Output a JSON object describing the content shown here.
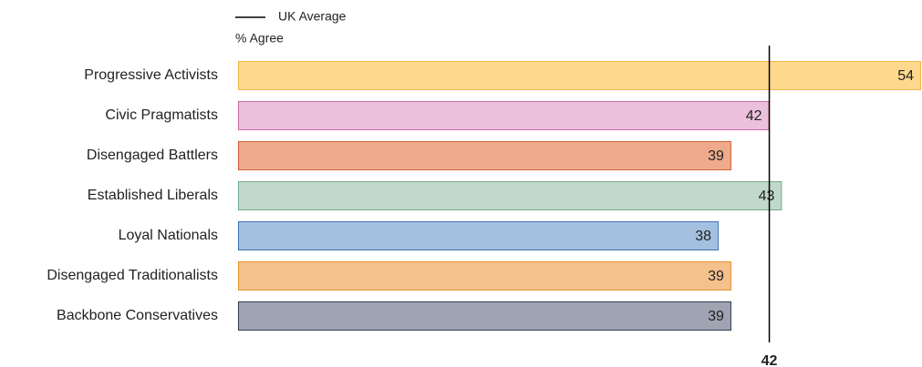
{
  "chart_data": {
    "type": "bar",
    "orientation": "horizontal",
    "value_label": "% Agree",
    "categories": [
      "Progressive Activists",
      "Civic Pragmatists",
      "Disengaged Battlers",
      "Established Liberals",
      "Loyal Nationals",
      "Disengaged Traditionalists",
      "Backbone Conservatives"
    ],
    "values": [
      54,
      42,
      39,
      43,
      38,
      39,
      39
    ],
    "colors": [
      "#fcd98c",
      "#ebc0dc",
      "#eeaa8a",
      "#c0d9cc",
      "#a4c0e0",
      "#f4c08c",
      "#a0a4b2"
    ],
    "border_colors": [
      "#eeb64a",
      "#c86ca8",
      "#d2603a",
      "#74aa8e",
      "#3c72b2",
      "#e8922e",
      "#323a52"
    ],
    "xlim": [
      0,
      54
    ],
    "reference": {
      "name": "UK Average",
      "value": 42,
      "color": "#000000"
    }
  }
}
